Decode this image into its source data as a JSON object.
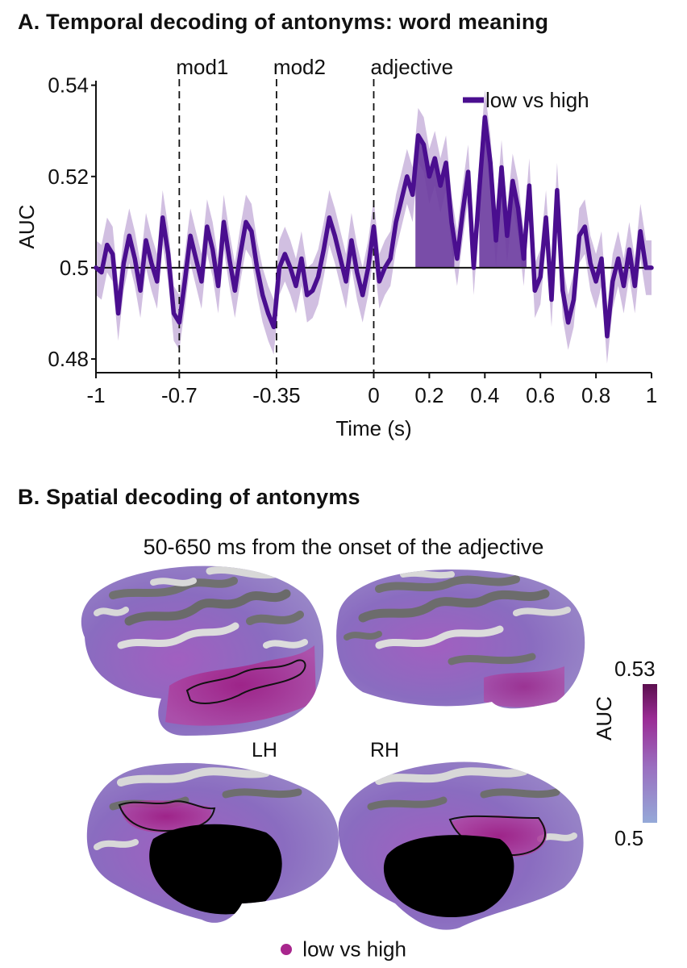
{
  "panelA": {
    "title": "A. Temporal decoding of antonyms: word meaning"
  },
  "panelB": {
    "title": "B. Spatial decoding of antonyms",
    "subtitle": "50-650 ms from the onset of the adjective",
    "hemisphere_left": "LH",
    "hemisphere_right": "RH",
    "colorbar": {
      "label": "AUC",
      "max": "0.53",
      "min": "0.5"
    },
    "legend_label": "low vs high"
  },
  "colors": {
    "line": "#4a0e8f",
    "band": "#c9b4dc",
    "sig_fill": "#6a3a9e",
    "cortex_gyri": "#d3d3d3",
    "cortex_sulci": "#6e6e6e",
    "cortex_purple": "#9a62b8",
    "cortex_magenta": "#a8268d"
  },
  "chart_data": {
    "type": "line",
    "title": "A. Temporal decoding of antonyms: word meaning",
    "xlabel": "Time (s)",
    "ylabel": "AUC",
    "xlim": [
      -1,
      1
    ],
    "ylim": [
      0.477,
      0.541
    ],
    "xticks": [
      -1,
      -0.7,
      -0.35,
      0,
      0.2,
      0.4,
      0.6,
      0.8,
      1
    ],
    "xtick_labels": [
      "-1",
      "-0.7",
      "-0.35",
      "0",
      "0.2",
      "0.4",
      "0.6",
      "0.8",
      "1"
    ],
    "yticks": [
      0.48,
      0.5,
      0.52,
      0.54
    ],
    "ytick_labels": [
      "0.48",
      "0.5",
      "0.52",
      "0.54"
    ],
    "chance_level": 0.5,
    "events": [
      {
        "x": -0.7,
        "label": "mod1"
      },
      {
        "x": -0.35,
        "label": "mod2"
      },
      {
        "x": 0,
        "label": "adjective"
      }
    ],
    "legend": {
      "label": "low vs high",
      "position": "top-right"
    },
    "significant_windows": [
      [
        0.15,
        0.29
      ],
      [
        0.38,
        0.55
      ]
    ],
    "series": [
      {
        "name": "low vs high",
        "sem": 0.006,
        "x": [
          -1.0,
          -0.98,
          -0.96,
          -0.94,
          -0.92,
          -0.9,
          -0.88,
          -0.86,
          -0.84,
          -0.82,
          -0.8,
          -0.78,
          -0.76,
          -0.74,
          -0.72,
          -0.7,
          -0.68,
          -0.66,
          -0.64,
          -0.62,
          -0.6,
          -0.58,
          -0.56,
          -0.54,
          -0.52,
          -0.5,
          -0.48,
          -0.46,
          -0.44,
          -0.42,
          -0.4,
          -0.38,
          -0.36,
          -0.34,
          -0.32,
          -0.3,
          -0.28,
          -0.26,
          -0.24,
          -0.22,
          -0.2,
          -0.18,
          -0.16,
          -0.14,
          -0.12,
          -0.1,
          -0.08,
          -0.06,
          -0.04,
          -0.02,
          0.0,
          0.02,
          0.04,
          0.06,
          0.08,
          0.1,
          0.12,
          0.14,
          0.16,
          0.18,
          0.2,
          0.22,
          0.24,
          0.26,
          0.28,
          0.3,
          0.32,
          0.34,
          0.36,
          0.38,
          0.4,
          0.42,
          0.44,
          0.46,
          0.48,
          0.5,
          0.52,
          0.54,
          0.56,
          0.58,
          0.6,
          0.62,
          0.64,
          0.66,
          0.68,
          0.7,
          0.72,
          0.74,
          0.76,
          0.78,
          0.8,
          0.82,
          0.84,
          0.86,
          0.88,
          0.9,
          0.92,
          0.94,
          0.96,
          0.98,
          1.0
        ],
        "values": [
          0.5,
          0.499,
          0.505,
          0.503,
          0.49,
          0.501,
          0.507,
          0.502,
          0.495,
          0.506,
          0.501,
          0.497,
          0.511,
          0.503,
          0.49,
          0.488,
          0.497,
          0.507,
          0.502,
          0.497,
          0.509,
          0.504,
          0.496,
          0.51,
          0.502,
          0.495,
          0.503,
          0.51,
          0.508,
          0.5,
          0.494,
          0.49,
          0.487,
          0.5,
          0.503,
          0.5,
          0.496,
          0.502,
          0.494,
          0.495,
          0.498,
          0.504,
          0.511,
          0.507,
          0.502,
          0.497,
          0.506,
          0.499,
          0.494,
          0.5,
          0.509,
          0.497,
          0.5,
          0.502,
          0.51,
          0.515,
          0.52,
          0.516,
          0.529,
          0.527,
          0.52,
          0.524,
          0.518,
          0.523,
          0.51,
          0.502,
          0.512,
          0.521,
          0.5,
          0.517,
          0.533,
          0.523,
          0.506,
          0.522,
          0.507,
          0.519,
          0.513,
          0.502,
          0.518,
          0.495,
          0.498,
          0.511,
          0.493,
          0.517,
          0.495,
          0.488,
          0.493,
          0.507,
          0.509,
          0.501,
          0.497,
          0.502,
          0.485,
          0.497,
          0.502,
          0.496,
          0.504,
          0.496,
          0.508,
          0.5,
          0.5
        ]
      }
    ]
  }
}
